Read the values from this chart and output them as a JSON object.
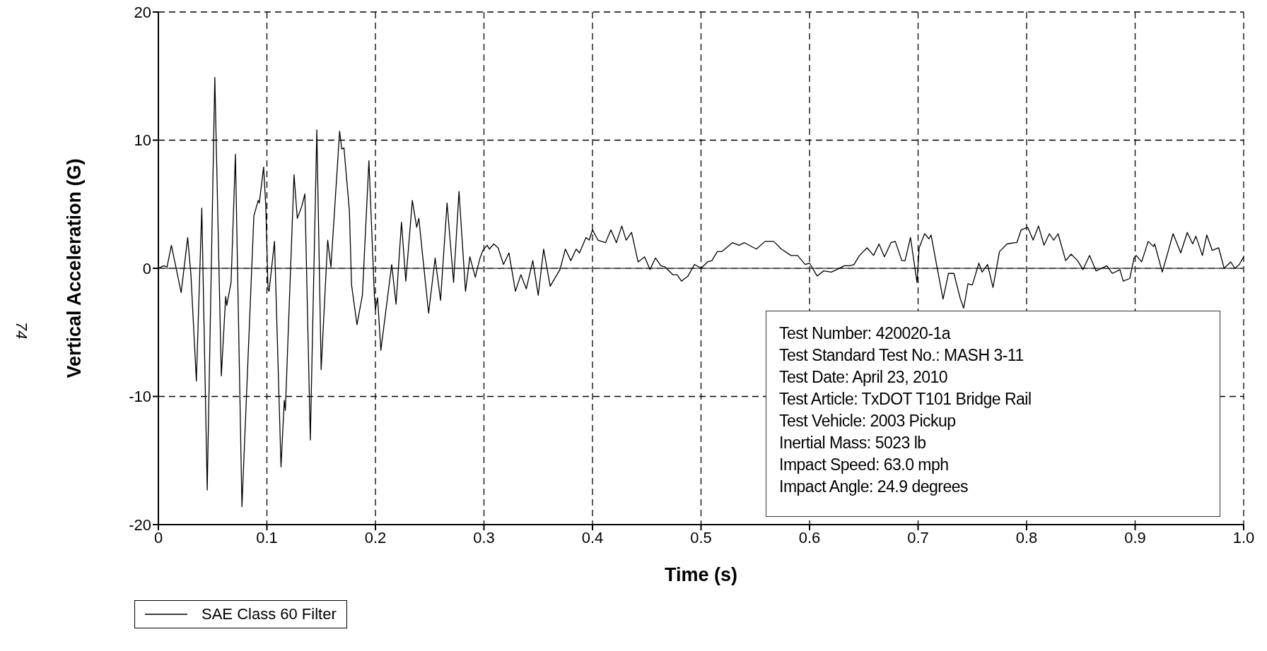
{
  "chart_data": {
    "type": "line",
    "xlabel": "Time (s)",
    "ylabel": "Vertical Acceleration (G)",
    "x": [
      0,
      0.005,
      0.008,
      0.012,
      0.021,
      0.027,
      0.03,
      0.035,
      0.04,
      0.045,
      0.052,
      0.058,
      0.062,
      0.063,
      0.067,
      0.071,
      0.077,
      0.088,
      0.089,
      0.092,
      0.093,
      0.097,
      0.099,
      0.101,
      0.102,
      0.107,
      0.113,
      0.116,
      0.117,
      0.125,
      0.128,
      0.132,
      0.135,
      0.14,
      0.146,
      0.15,
      0.156,
      0.159,
      0.167,
      0.169,
      0.171,
      0.176,
      0.178,
      0.183,
      0.188,
      0.194,
      0.199,
      0.2,
      0.202,
      0.205,
      0.215,
      0.219,
      0.224,
      0.228,
      0.234,
      0.238,
      0.24,
      0.243,
      0.249,
      0.255,
      0.26,
      0.266,
      0.272,
      0.277,
      0.283,
      0.287,
      0.292,
      0.296,
      0.299,
      0.303,
      0.305,
      0.309,
      0.313,
      0.318,
      0.323,
      0.329,
      0.334,
      0.339,
      0.345,
      0.35,
      0.355,
      0.361,
      0.37,
      0.375,
      0.38,
      0.385,
      0.388,
      0.394,
      0.397,
      0.4,
      0.405,
      0.412,
      0.417,
      0.422,
      0.427,
      0.431,
      0.436,
      0.442,
      0.448,
      0.453,
      0.458,
      0.463,
      0.467,
      0.474,
      0.478,
      0.482,
      0.488,
      0.494,
      0.5,
      0.506,
      0.51,
      0.515,
      0.519,
      0.529,
      0.535,
      0.54,
      0.551,
      0.559,
      0.567,
      0.574,
      0.583,
      0.589,
      0.596,
      0.6,
      0.607,
      0.613,
      0.62,
      0.625,
      0.632,
      0.637,
      0.641,
      0.646,
      0.653,
      0.659,
      0.664,
      0.669,
      0.675,
      0.679,
      0.685,
      0.688,
      0.693,
      0.699,
      0.701,
      0.706,
      0.71,
      0.712,
      0.717,
      0.723,
      0.728,
      0.733,
      0.739,
      0.742,
      0.746,
      0.75,
      0.756,
      0.759,
      0.764,
      0.769,
      0.775,
      0.782,
      0.789,
      0.791,
      0.795,
      0.801,
      0.806,
      0.811,
      0.816,
      0.821,
      0.825,
      0.829,
      0.836,
      0.841,
      0.847,
      0.852,
      0.858,
      0.864,
      0.874,
      0.879,
      0.886,
      0.889,
      0.895,
      0.899,
      0.901,
      0.906,
      0.912,
      0.917,
      0.918,
      0.925,
      0.935,
      0.942,
      0.948,
      0.953,
      0.956,
      0.962,
      0.966,
      0.971,
      0.977,
      0.982,
      0.988,
      0.992,
      0.996,
      1.0
    ],
    "series": [
      {
        "name": "SAE Class 60 Filter",
        "color": "#000000",
        "values": [
          0,
          0.2,
          0.1,
          1.8,
          -1.9,
          2.4,
          -0.5,
          -8.8,
          4.7,
          -17.3,
          14.9,
          -8.4,
          -2.2,
          -2.9,
          -1.1,
          8.9,
          -18.6,
          4.1,
          4.4,
          5.3,
          5.1,
          7.9,
          4.8,
          -1.6,
          -1.8,
          2.1,
          -15.5,
          -10.3,
          -11.1,
          7.3,
          3.9,
          4.8,
          5.8,
          -13.4,
          10.8,
          -7.9,
          2.2,
          0.1,
          10.7,
          9.3,
          9.4,
          4.5,
          -1.3,
          -4.4,
          -2.1,
          8.4,
          -2.1,
          -3.2,
          -2.3,
          -6.4,
          0.3,
          -2.8,
          3.6,
          -1.0,
          5.3,
          3.2,
          3.9,
          1.4,
          -3.5,
          0.8,
          -2.5,
          5.1,
          -1.1,
          6.0,
          -1.8,
          0.9,
          -0.7,
          0.7,
          1.4,
          1.8,
          1.5,
          1.9,
          1.6,
          0.3,
          1.2,
          -1.8,
          -0.5,
          -1.6,
          0.6,
          -2.1,
          1.5,
          -1.4,
          -0.1,
          1.5,
          0.6,
          1.5,
          1.2,
          2.4,
          2.2,
          3.0,
          2.2,
          2.0,
          3.0,
          2.0,
          3.3,
          2.2,
          2.8,
          0.5,
          0.9,
          -0.1,
          0.8,
          0.2,
          0.1,
          -0.5,
          -0.5,
          -1.0,
          -0.6,
          0.3,
          0.0,
          0.5,
          0.6,
          1.3,
          1.3,
          2.0,
          1.8,
          2.0,
          1.5,
          2.1,
          2.1,
          1.5,
          1.0,
          1.0,
          0.3,
          0.4,
          -0.6,
          -0.2,
          -0.3,
          -0.1,
          0.2,
          0.2,
          0.3,
          1.0,
          1.6,
          1.0,
          1.9,
          0.9,
          2.0,
          2.1,
          0.6,
          0.6,
          2.4,
          -1.1,
          1.6,
          2.7,
          2.3,
          2.6,
          0.3,
          -2.4,
          -0.4,
          -0.4,
          -2.4,
          -3.1,
          -1.2,
          -1.3,
          0.4,
          -0.3,
          0.3,
          -1.5,
          1.3,
          1.9,
          2.0,
          2.0,
          3.0,
          3.2,
          2.2,
          3.3,
          1.8,
          2.7,
          2.2,
          2.7,
          0.6,
          1.1,
          0.6,
          -0.1,
          1.0,
          -0.2,
          0.2,
          -0.4,
          -0.1,
          -1.0,
          -0.8,
          0.8,
          1.0,
          0.5,
          2.1,
          1.7,
          1.9,
          -0.3,
          2.7,
          1.2,
          2.8,
          1.9,
          2.5,
          1.0,
          2.6,
          1.4,
          1.6,
          0.0,
          0.5,
          0.0,
          0.3,
          0.9
        ]
      }
    ],
    "xlim": [
      0,
      1
    ],
    "xticks": [
      0,
      0.1,
      0.2,
      0.3,
      0.4,
      0.5,
      0.6,
      0.7,
      0.8,
      0.9,
      {
        "value": 1,
        "label": "1.0"
      }
    ],
    "ylim": [
      -20,
      20
    ],
    "yticks": [
      -20,
      -10,
      0,
      10,
      20
    ],
    "grid": true,
    "line_style": "solid",
    "marker": "none",
    "legend": "bottom left",
    "ref_lines": [
      {
        "axis": "y",
        "value": 0,
        "color": "#555555"
      }
    ],
    "annotations": [
      "Test Number: 420020-1a",
      "Test Standard Test No.: MASH 3-11",
      "Test Date: April 23, 2010",
      "Test Article: TxDOT T101 Bridge Rail",
      "Test Vehicle: 2003 Pickup",
      "Inertial Mass: 5023 lb",
      "Impact Speed: 63.0 mph",
      "Impact Angle: 24.9 degrees",
      "74"
    ]
  }
}
